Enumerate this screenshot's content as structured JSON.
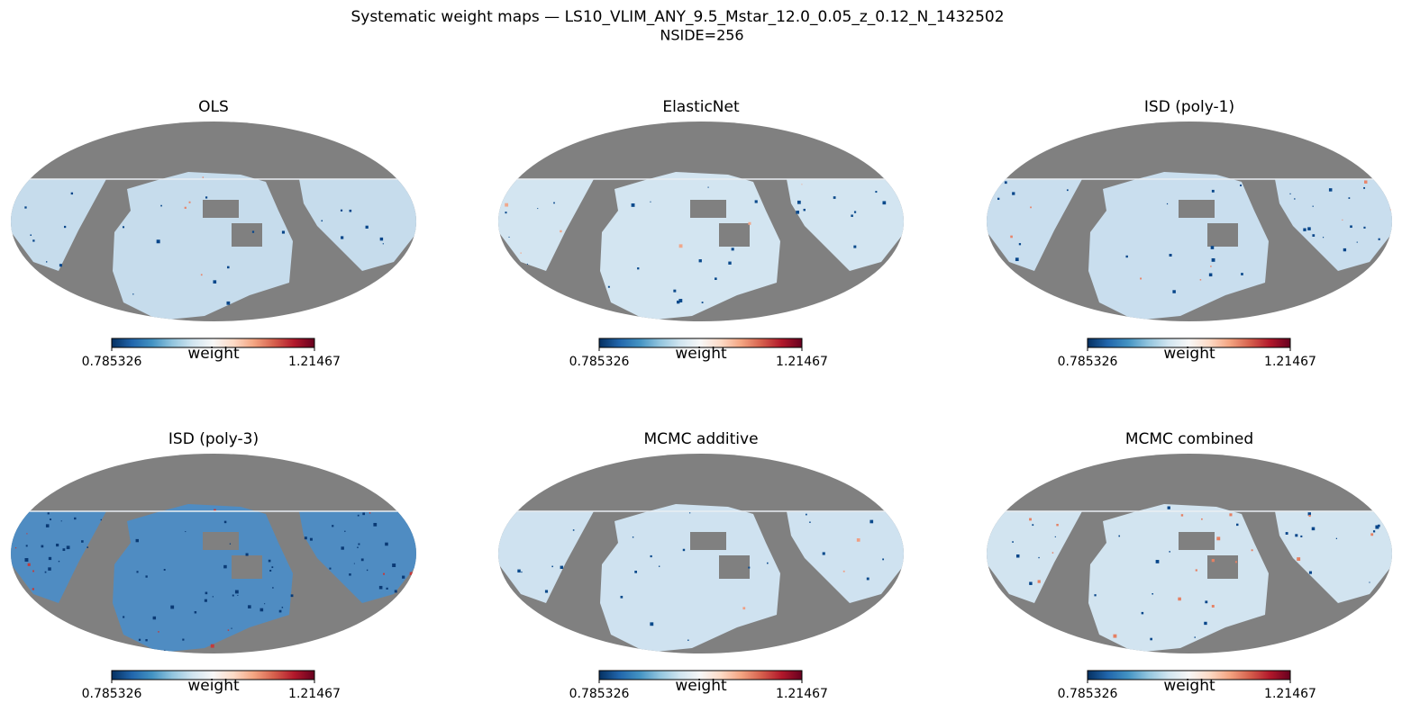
{
  "title": "Systematic weight maps — LS10_VLIM_ANY_9.5_Mstar_12.0_0.05_z_0.12_N_1432502",
  "subtitle": "NSIDE=256",
  "chart_data": [
    {
      "type": "map",
      "title": "OLS",
      "colorbar": {
        "label": "weight",
        "clim": [
          0.785326,
          1.21467
        ],
        "ticks": [
          0.785326,
          1.21467
        ]
      }
    },
    {
      "type": "map",
      "title": "ElasticNet",
      "colorbar": {
        "label": "weight",
        "clim": [
          0.785326,
          1.21467
        ],
        "ticks": [
          0.785326,
          1.21467
        ]
      }
    },
    {
      "type": "map",
      "title": "ISD (poly-1)",
      "colorbar": {
        "label": "weight",
        "clim": [
          0.785326,
          1.21467
        ],
        "ticks": [
          0.785326,
          1.21467
        ]
      }
    },
    {
      "type": "map",
      "title": "ISD (poly-3)",
      "colorbar": {
        "label": "weight",
        "clim": [
          0.785326,
          1.21467
        ],
        "ticks": [
          0.785326,
          1.21467
        ]
      }
    },
    {
      "type": "map",
      "title": "MCMC additive",
      "colorbar": {
        "label": "weight",
        "clim": [
          0.785326,
          1.21467
        ],
        "ticks": [
          0.785326,
          1.21467
        ]
      }
    },
    {
      "type": "map",
      "title": "MCMC combined",
      "colorbar": {
        "label": "weight",
        "clim": [
          0.785326,
          1.21467
        ],
        "ticks": [
          0.785326,
          1.21467
        ]
      }
    }
  ]
}
